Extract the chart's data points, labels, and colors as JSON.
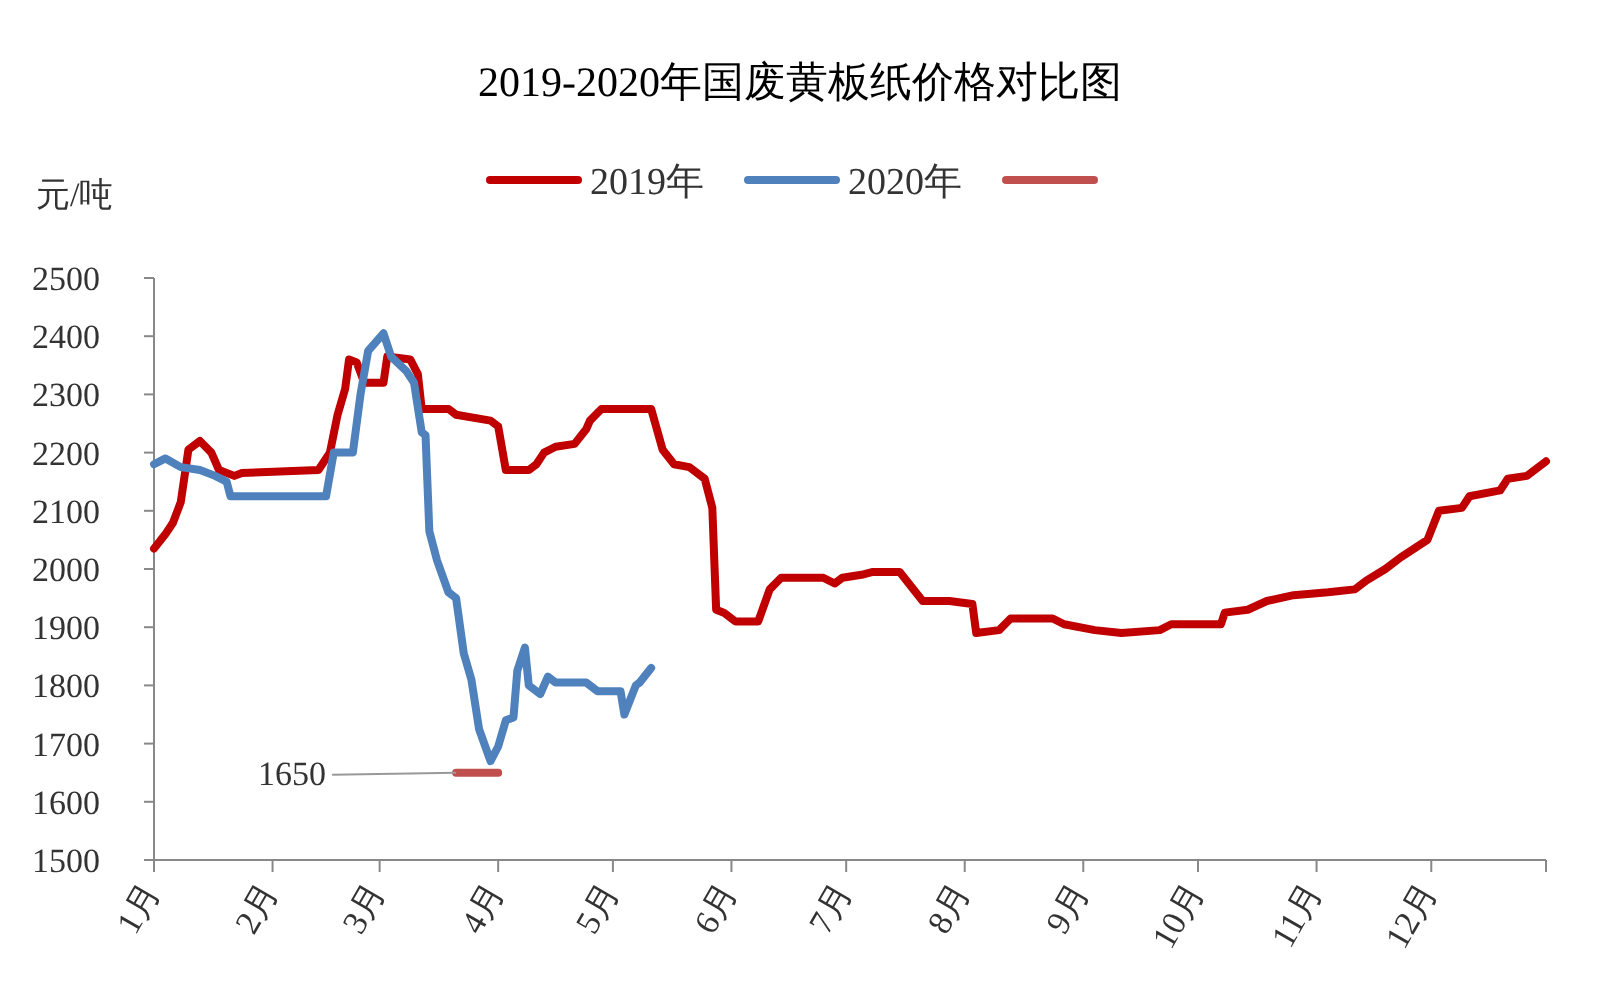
{
  "chart_data": {
    "type": "line",
    "title": "2019-2020年国废黄板纸价格对比图",
    "ylabel": "元/吨",
    "legend": "top",
    "grid": false,
    "xlim": [
      "--01-01",
      "--12-31"
    ],
    "xticks": [
      {
        "value": "--01-01",
        "label": "1月"
      },
      {
        "value": "--02-01",
        "label": "2月"
      },
      {
        "value": "--03-01",
        "label": "3月"
      },
      {
        "value": "--04-01",
        "label": "4月"
      },
      {
        "value": "--05-01",
        "label": "5月"
      },
      {
        "value": "--06-01",
        "label": "6月"
      },
      {
        "value": "--07-01",
        "label": "7月"
      },
      {
        "value": "--08-01",
        "label": "8月"
      },
      {
        "value": "--09-01",
        "label": "9月"
      },
      {
        "value": "--10-01",
        "label": "10月"
      },
      {
        "value": "--11-01",
        "label": "11月"
      },
      {
        "value": "--12-01",
        "label": "12月"
      },
      {
        "value": "--12-31",
        "label": null
      }
    ],
    "ylim": [
      1500,
      2500
    ],
    "yticks": [
      1500,
      1600,
      1700,
      1800,
      1900,
      2000,
      2100,
      2200,
      2300,
      2400,
      2500
    ],
    "series": [
      {
        "name": "2019年",
        "color": "#c00000",
        "x": [
          "--01-01",
          "--01-04",
          "--01-06",
          "--01-08",
          "--01-10",
          "--01-13",
          "--01-16",
          "--01-18",
          "--01-22",
          "--01-24",
          "--02-13",
          "--02-16",
          "--02-18",
          "--02-20",
          "--02-21",
          "--02-23",
          "--02-25",
          "--03-02",
          "--03-03",
          "--03-09",
          "--03-11",
          "--03-12",
          "--03-19",
          "--03-21",
          "--03-30",
          "--04-01",
          "--04-03",
          "--04-09",
          "--04-11",
          "--04-13",
          "--04-16",
          "--04-21",
          "--04-24",
          "--04-25",
          "--04-28",
          "--05-11",
          "--05-14",
          "--05-17",
          "--05-21",
          "--05-25",
          "--05-27",
          "--05-28",
          "--05-30",
          "--06-02",
          "--06-08",
          "--06-11",
          "--06-14",
          "--06-25",
          "--06-28",
          "--06-30",
          "--07-05",
          "--07-08",
          "--07-15",
          "--07-18",
          "--07-21",
          "--07-28",
          "--08-03",
          "--08-04",
          "--08-10",
          "--08-13",
          "--08-24",
          "--08-27",
          "--09-04",
          "--09-11",
          "--09-21",
          "--09-24",
          "--10-07",
          "--10-08",
          "--10-14",
          "--10-19",
          "--10-26",
          "--11-04",
          "--11-11",
          "--11-14",
          "--11-19",
          "--11-23",
          "--11-30",
          "--12-03",
          "--12-09",
          "--12-11",
          "--12-19",
          "--12-21",
          "--12-26",
          "--12-31"
        ],
        "values": [
          2035,
          2060,
          2080,
          2115,
          2205,
          2220,
          2200,
          2170,
          2160,
          2165,
          2170,
          2200,
          2265,
          2310,
          2360,
          2355,
          2320,
          2320,
          2365,
          2360,
          2335,
          2275,
          2275,
          2265,
          2255,
          2245,
          2170,
          2170,
          2180,
          2200,
          2210,
          2215,
          2240,
          2255,
          2275,
          2275,
          2205,
          2180,
          2175,
          2155,
          2105,
          1930,
          1925,
          1910,
          1910,
          1965,
          1985,
          1985,
          1975,
          1985,
          1990,
          1995,
          1995,
          1970,
          1945,
          1945,
          1940,
          1890,
          1895,
          1915,
          1915,
          1905,
          1895,
          1890,
          1895,
          1905,
          1905,
          1925,
          1930,
          1945,
          1955,
          1960,
          1965,
          1980,
          2000,
          2020,
          2050,
          2100,
          2105,
          2125,
          2135,
          2155,
          2160,
          2185
        ]
      },
      {
        "name": "2020年",
        "color": "#4f81bd",
        "x": [
          "--01-01",
          "--01-04",
          "--01-08",
          "--01-13",
          "--01-17",
          "--01-20",
          "--01-21",
          "--02-15",
          "--02-17",
          "--02-22",
          "--02-24",
          "--02-26",
          "--03-02",
          "--03-04",
          "--03-08",
          "--03-10",
          "--03-12",
          "--03-13",
          "--03-14",
          "--03-16",
          "--03-19",
          "--03-21",
          "--03-23",
          "--03-25",
          "--03-27",
          "--03-30",
          "--04-01",
          "--04-03",
          "--04-05",
          "--04-06",
          "--04-08",
          "--04-09",
          "--04-12",
          "--04-14",
          "--04-16",
          "--04-24",
          "--04-27",
          "--05-03",
          "--05-04",
          "--05-07",
          "--05-08",
          "--05-11"
        ],
        "values": [
          2180,
          2190,
          2175,
          2170,
          2160,
          2150,
          2125,
          2125,
          2200,
          2200,
          2300,
          2375,
          2405,
          2365,
          2340,
          2320,
          2235,
          2230,
          2065,
          2015,
          1960,
          1950,
          1855,
          1810,
          1725,
          1670,
          1695,
          1740,
          1745,
          1825,
          1865,
          1800,
          1785,
          1815,
          1805,
          1805,
          1790,
          1790,
          1750,
          1800,
          1805,
          1830
        ]
      },
      {
        "color": "#c0504d",
        "x": [
          "--03-21",
          "--04-01"
        ],
        "values": [
          1650,
          1650
        ]
      }
    ],
    "annotations": [
      {
        "text": "1650",
        "x": "--03-21",
        "y": 1650
      }
    ]
  }
}
